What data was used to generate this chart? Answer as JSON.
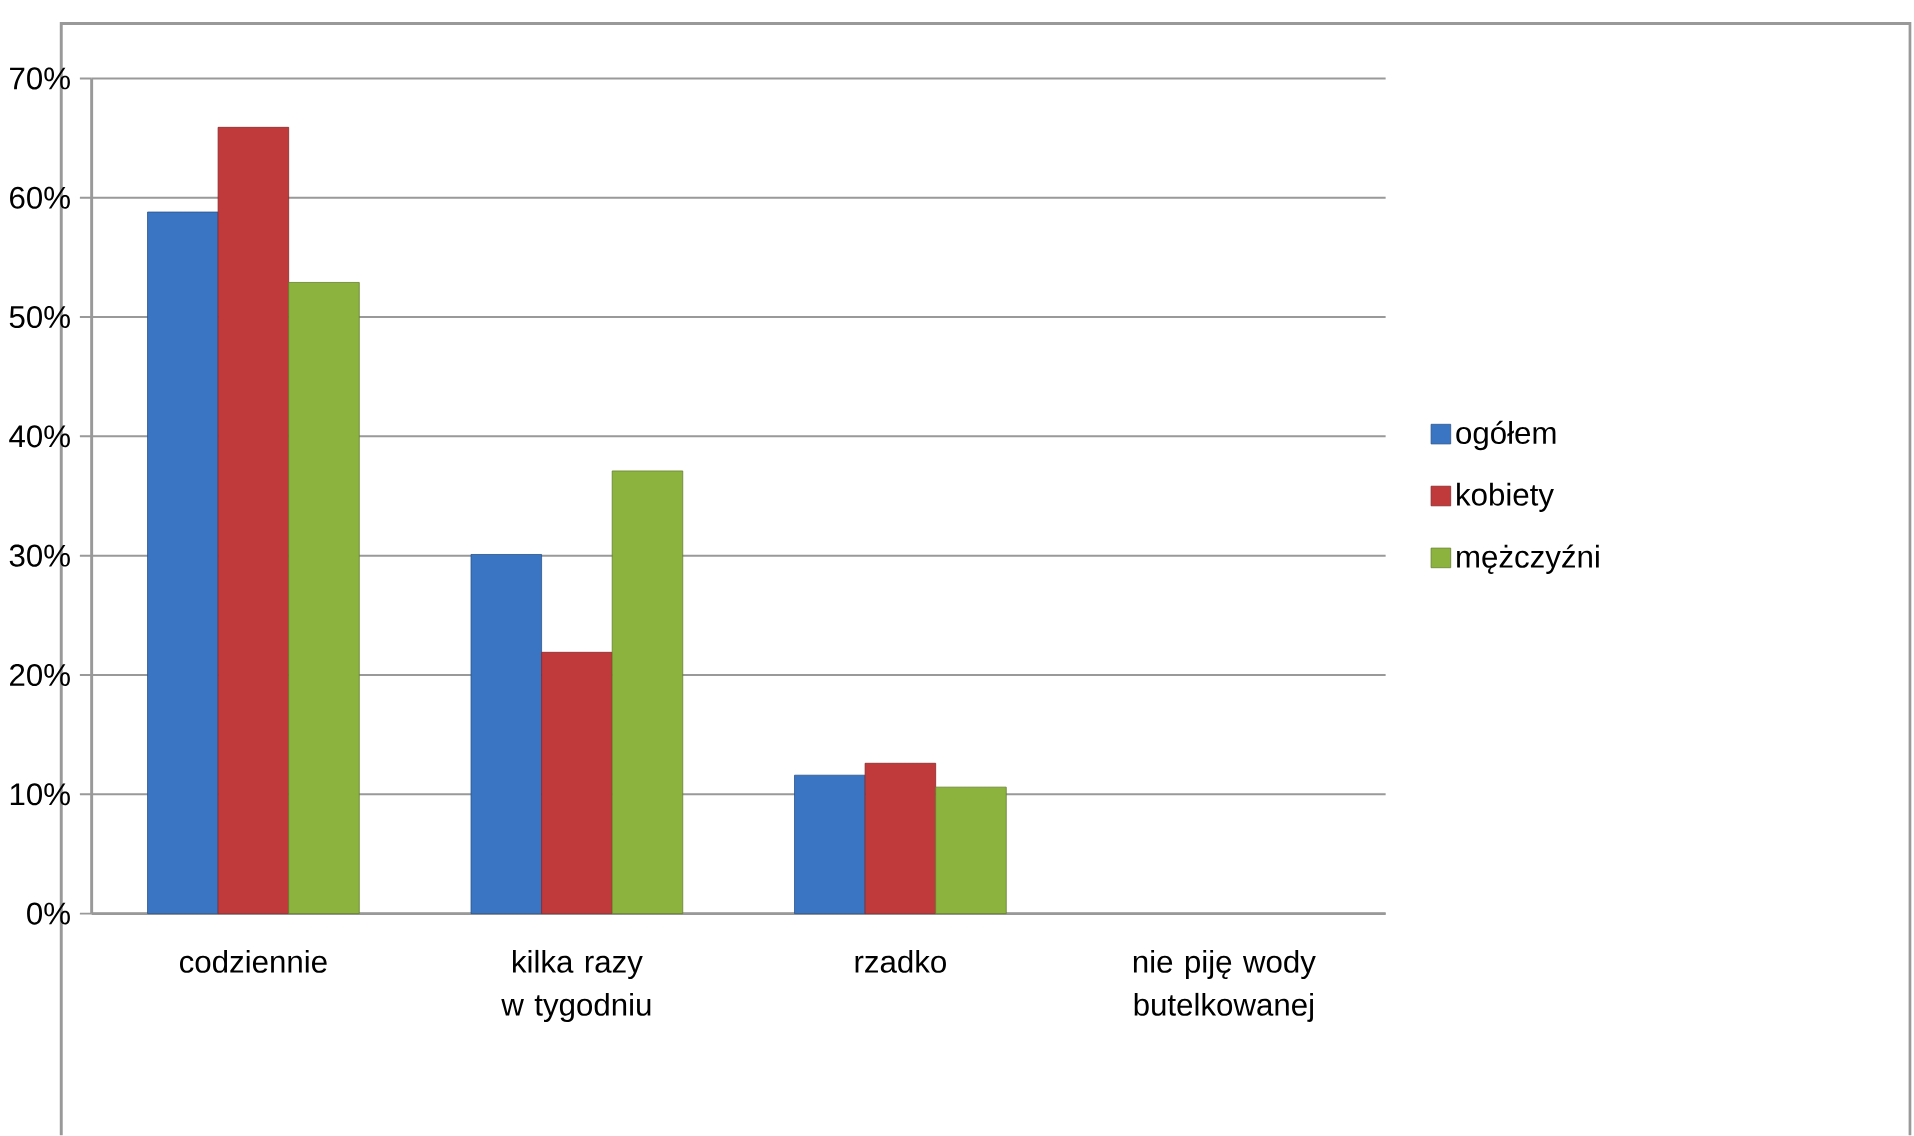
{
  "chart_data": {
    "type": "bar",
    "categories": [
      "codziennie",
      "kilka razy w tygodniu",
      "rzadko",
      "nie piję wody butelkowanej"
    ],
    "series": [
      {
        "name": "ogółem",
        "color": "#3a75c4",
        "values": [
          58.8,
          30.1,
          11.6,
          null
        ]
      },
      {
        "name": "kobiety",
        "color": "#c0393b",
        "values": [
          65.9,
          21.9,
          12.6,
          null
        ]
      },
      {
        "name": "mężczyźni",
        "color": "#8db33f",
        "values": [
          52.9,
          37.1,
          10.6,
          null
        ]
      }
    ],
    "ylim": [
      0,
      70
    ],
    "yticks": [
      {
        "value": 0,
        "label": "0%"
      },
      {
        "value": 10,
        "label": "10%"
      },
      {
        "value": 20,
        "label": "20%"
      },
      {
        "value": 30,
        "label": "30%"
      },
      {
        "value": 40,
        "label": "40%"
      },
      {
        "value": 50,
        "label": "50%"
      },
      {
        "value": 60,
        "label": "60%"
      },
      {
        "value": 70,
        "label": "70%"
      }
    ],
    "grid": "y",
    "legend": "right"
  }
}
